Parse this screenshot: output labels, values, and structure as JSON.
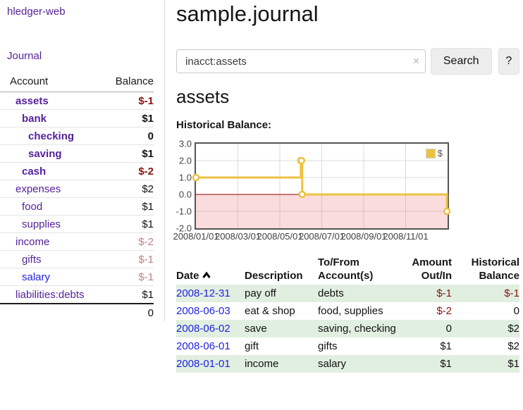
{
  "sidebar": {
    "app_title": "hledger-web",
    "journal_label": "Journal",
    "accounts_table": {
      "headers": {
        "account": "Account",
        "balance": "Balance"
      },
      "rows": [
        {
          "name": "assets",
          "indent": 0,
          "bold": true,
          "balance": "$-1",
          "balance_style": "neg-strong",
          "link_style": "purple"
        },
        {
          "name": "bank",
          "indent": 1,
          "bold": true,
          "balance": "$1",
          "balance_style": "pos",
          "link_style": "purple"
        },
        {
          "name": "checking",
          "indent": 2,
          "bold": true,
          "balance": "0",
          "balance_style": "pos",
          "link_style": "purple"
        },
        {
          "name": "saving",
          "indent": 2,
          "bold": true,
          "balance": "$1",
          "balance_style": "pos",
          "link_style": "purple"
        },
        {
          "name": "cash",
          "indent": 1,
          "bold": true,
          "balance": "$-2",
          "balance_style": "neg-strong",
          "link_style": "purple"
        },
        {
          "name": "expenses",
          "indent": 0,
          "bold": false,
          "balance": "$2",
          "balance_style": "pos",
          "link_style": "purple"
        },
        {
          "name": "food",
          "indent": 1,
          "bold": false,
          "balance": "$1",
          "balance_style": "pos",
          "link_style": "purple"
        },
        {
          "name": "supplies",
          "indent": 1,
          "bold": false,
          "balance": "$1",
          "balance_style": "pos",
          "link_style": "purple"
        },
        {
          "name": "income",
          "indent": 0,
          "bold": false,
          "balance": "$-2",
          "balance_style": "neg-faded",
          "link_style": "purple"
        },
        {
          "name": "gifts",
          "indent": 1,
          "bold": false,
          "balance": "$-1",
          "balance_style": "neg-faded",
          "link_style": "purple"
        },
        {
          "name": "salary",
          "indent": 1,
          "bold": false,
          "balance": "$-1",
          "balance_style": "neg-faded",
          "link_style": "blue"
        },
        {
          "name": "liabilities:debts",
          "indent": 0,
          "bold": false,
          "balance": "$1",
          "balance_style": "pos",
          "link_style": "purple"
        }
      ],
      "total": "0"
    }
  },
  "main": {
    "title": "sample.journal",
    "search": {
      "value": "inacct:assets",
      "clear_icon": "×",
      "button_label": "Search",
      "help_label": "?"
    },
    "account_heading": "assets",
    "chart_heading": "Historical Balance:",
    "register_table": {
      "headers": {
        "date": "Date",
        "description": "Description",
        "accounts": "To/From Account(s)",
        "amount": "Amount Out/In",
        "balance": "Historical Balance"
      },
      "rows": [
        {
          "date": "2008-12-31",
          "description": "pay off",
          "accounts": "debts",
          "amount": "$-1",
          "amount_neg": true,
          "balance": "$-1",
          "balance_neg": true,
          "shaded": true
        },
        {
          "date": "2008-06-03",
          "description": "eat & shop",
          "accounts": "food, supplies",
          "amount": "$-2",
          "amount_neg": true,
          "balance": "0",
          "balance_neg": false,
          "shaded": false
        },
        {
          "date": "2008-06-02",
          "description": "save",
          "accounts": "saving, checking",
          "amount": "0",
          "amount_neg": false,
          "balance": "$2",
          "balance_neg": false,
          "shaded": true
        },
        {
          "date": "2008-06-01",
          "description": "gift",
          "accounts": "gifts",
          "amount": "$1",
          "amount_neg": false,
          "balance": "$2",
          "balance_neg": false,
          "shaded": false
        },
        {
          "date": "2008-01-01",
          "description": "income",
          "accounts": "salary",
          "amount": "$1",
          "amount_neg": false,
          "balance": "$1",
          "balance_neg": false,
          "shaded": true
        }
      ]
    }
  },
  "chart_data": {
    "type": "line",
    "title": "Historical Balance",
    "legend": "$",
    "legend_position": "top-right",
    "grid": true,
    "step": true,
    "xlim_months": [
      0,
      12
    ],
    "ylim": [
      -2,
      3
    ],
    "series": [
      {
        "name": "$",
        "color": "#edc240",
        "points": [
          {
            "date": "2008-01-01",
            "x": 0,
            "y": 1
          },
          {
            "date": "2008-06-01",
            "x": 5.0,
            "y": 2
          },
          {
            "date": "2008-06-02",
            "x": 5.033,
            "y": 2
          },
          {
            "date": "2008-06-03",
            "x": 5.067,
            "y": 0
          },
          {
            "date": "2008-12-31",
            "x": 11.97,
            "y": -1
          }
        ]
      }
    ],
    "y_ticks": [
      {
        "value": 3,
        "label": "3.0"
      },
      {
        "value": 2,
        "label": "2.0"
      },
      {
        "value": 1,
        "label": "1.0"
      },
      {
        "value": 0,
        "label": "0.0"
      },
      {
        "value": -1,
        "label": "-1.0"
      },
      {
        "value": -2,
        "label": "-2.0"
      }
    ],
    "x_ticks": [
      {
        "x": 0,
        "label": "2008/01/01"
      },
      {
        "x": 2,
        "label": "2008/03/01"
      },
      {
        "x": 4,
        "label": "2008/05/01"
      },
      {
        "x": 6,
        "label": "2008/07/01"
      },
      {
        "x": 8,
        "label": "2008/09/01"
      },
      {
        "x": 10,
        "label": "2008/11/01"
      }
    ],
    "negative_region_color": "#fadcdc",
    "zero_line_color": "#8b0000",
    "grid_color": "rgba(128,128,128,0.28)"
  },
  "colors": {
    "link_purple": "#55229b",
    "link_blue": "#2222dd",
    "negative_strong": "#87150d",
    "negative_faded": "#c08080",
    "row_stripe_green": "#e1efe1",
    "series_gold": "#edc240"
  }
}
